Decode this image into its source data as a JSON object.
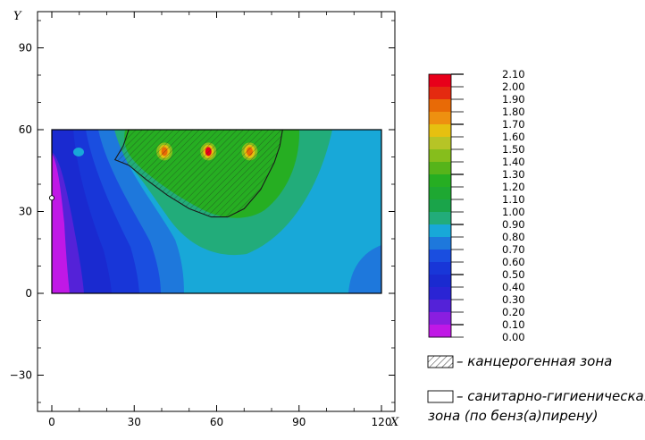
{
  "chart_data": {
    "type": "heatmap",
    "x_axis": {
      "label": "X",
      "ticks": [
        0,
        30,
        60,
        90,
        120
      ],
      "range": [
        -5,
        135
      ]
    },
    "y_axis": {
      "label": "Y",
      "ticks": [
        -30,
        0,
        30,
        60,
        90
      ],
      "range": [
        -42,
        102
      ]
    },
    "plot_area": {
      "x": [
        0,
        120
      ],
      "y": [
        0,
        60
      ]
    },
    "colorbar": {
      "levels": [
        "2.10",
        "2.00",
        "1.90",
        "1.80",
        "1.70",
        "1.60",
        "1.50",
        "1.40",
        "1.30",
        "1.20",
        "1.10",
        "1.00",
        "0.90",
        "0.80",
        "0.70",
        "0.60",
        "0.50",
        "0.40",
        "0.30",
        "0.20",
        "0.10",
        "0.00"
      ],
      "colors": [
        "#e8001a",
        "#e42a10",
        "#e86a06",
        "#ee9010",
        "#e6c010",
        "#b6c426",
        "#86be1c",
        "#56b41a",
        "#26ae22",
        "#1ea832",
        "#1aa44a",
        "#22ac7a",
        "#18a8d8",
        "#1e78dc",
        "#1a4ee0",
        "#1836d8",
        "#1a2ad0",
        "#2a24d4",
        "#5422d8",
        "#8a1ee0",
        "#c018e6"
      ]
    },
    "hotspots": [
      {
        "x": 41,
        "y": 52,
        "value": 1.75
      },
      {
        "x": 57,
        "y": 52,
        "value": 2.1
      },
      {
        "x": 72,
        "y": 52,
        "value": 1.75
      }
    ],
    "carcinogenic_zone_boundary": [
      [
        28,
        60
      ],
      [
        26,
        54
      ],
      [
        23,
        49
      ],
      [
        28,
        47
      ],
      [
        34,
        42
      ],
      [
        42,
        36
      ],
      [
        50,
        31
      ],
      [
        58,
        28
      ],
      [
        64,
        28
      ],
      [
        70,
        31
      ],
      [
        76,
        38
      ],
      [
        81,
        48
      ],
      [
        83,
        54
      ],
      [
        84,
        60
      ]
    ],
    "marker_point": {
      "x": 0,
      "y": 35
    }
  },
  "legend": {
    "carcinogenic_zone": "– канцерогенная зона",
    "sanitary_zone_line1": "– санитарно-гигиеническая",
    "sanitary_zone_line2": "зона (по бенз(а)пирену)"
  }
}
